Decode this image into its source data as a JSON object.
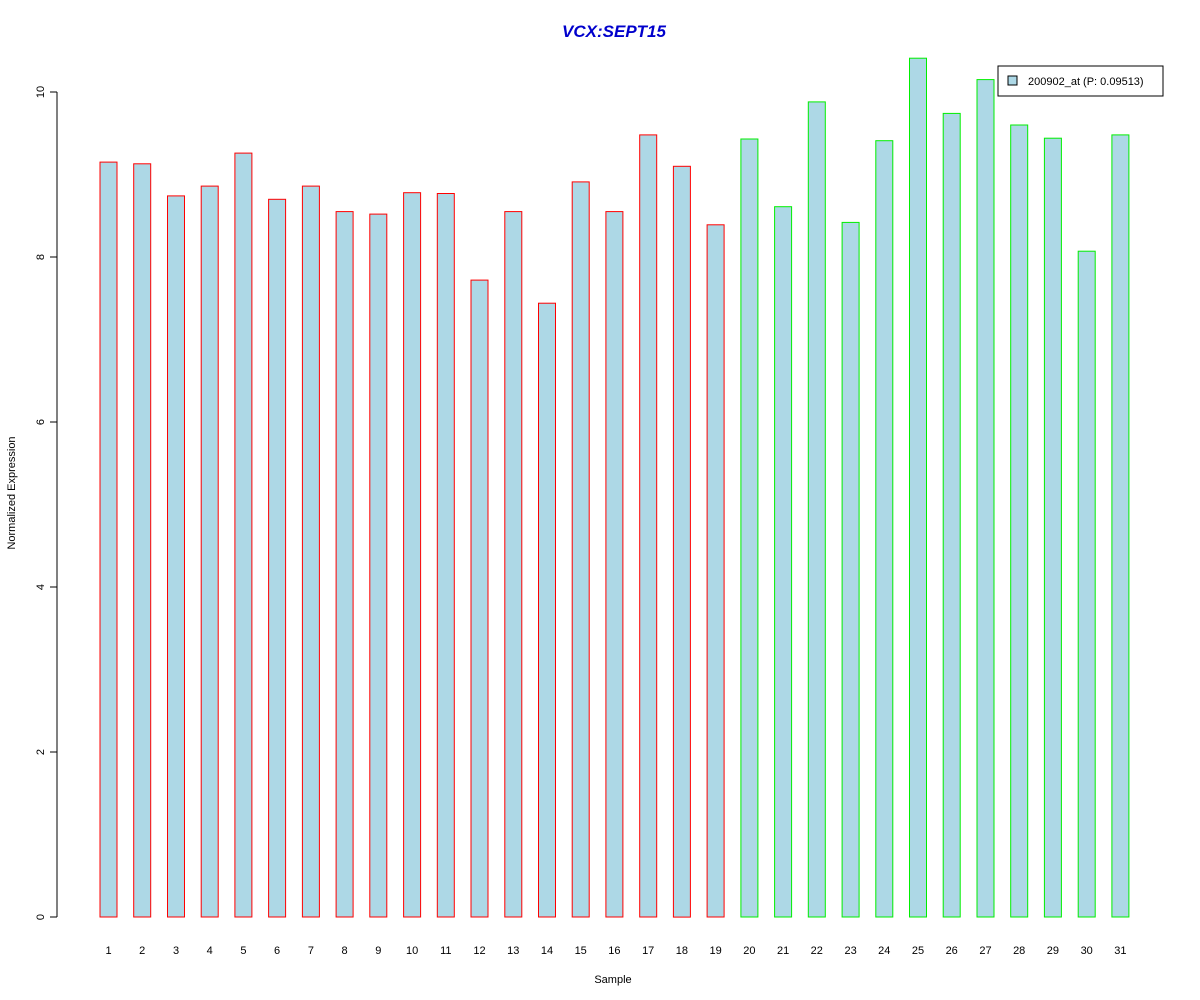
{
  "chart_data": {
    "type": "bar",
    "title": "VCX:SEPT15",
    "xlabel": "Sample",
    "ylabel": "Normalized Expression",
    "ylim": [
      0,
      10.4
    ],
    "yticks": [
      0,
      2,
      4,
      6,
      8,
      10
    ],
    "categories": [
      "1",
      "2",
      "3",
      "4",
      "5",
      "6",
      "7",
      "8",
      "9",
      "10",
      "11",
      "12",
      "13",
      "14",
      "15",
      "16",
      "17",
      "18",
      "19",
      "20",
      "21",
      "22",
      "23",
      "24",
      "25",
      "26",
      "27",
      "28",
      "29",
      "30",
      "31"
    ],
    "series": [
      {
        "name": "200902_at (P: 0.09513)",
        "values": [
          9.15,
          9.13,
          8.74,
          8.86,
          9.26,
          8.7,
          8.86,
          8.55,
          8.52,
          8.78,
          8.77,
          7.72,
          8.55,
          7.44,
          8.91,
          8.55,
          9.48,
          9.1,
          8.39,
          9.43,
          8.61,
          9.88,
          8.42,
          9.41,
          10.41,
          9.74,
          10.15,
          9.6,
          9.44,
          8.07,
          9.48
        ]
      }
    ],
    "groups": [
      {
        "samples": "1-19",
        "border_color": "#ff0000"
      },
      {
        "samples": "20-31",
        "border_color": "#00ee00"
      }
    ],
    "bar_fill": "#add8e6",
    "title_color": "#0000cc",
    "legend_position": "top-right",
    "grid": false
  }
}
